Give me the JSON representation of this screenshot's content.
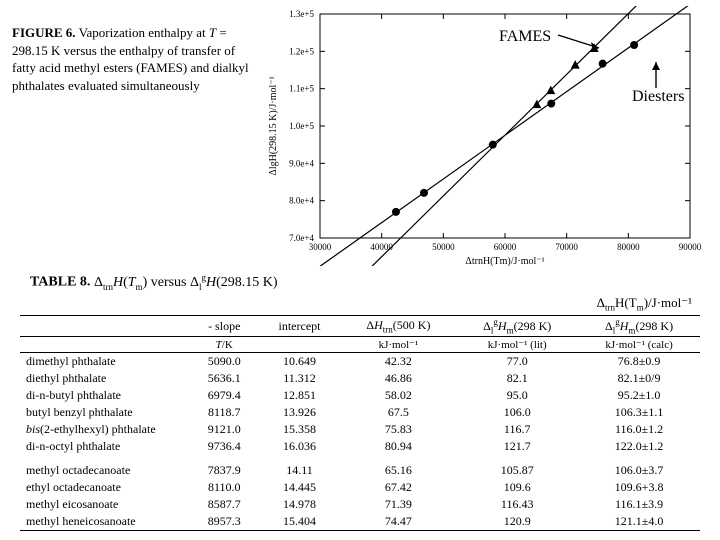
{
  "figure": {
    "title_bold": "FIGURE 6.",
    "caption_rest": " Vaporization enthalpy at T = 298.15 K versus the enthalpy of transfer of fatty acid methyl esters (FAMES) and dialkyl phthalates evaluated simultaneously",
    "labels": {
      "fames": "FAMES",
      "diesters": "Diesters"
    },
    "chart": {
      "type": "scatter-with-lines",
      "xlim": [
        30000,
        90000
      ],
      "ylim": [
        70000,
        130000
      ],
      "xticks": [
        30000,
        40000,
        50000,
        60000,
        70000,
        80000,
        90000
      ],
      "yticks": [
        70000,
        80000,
        90000,
        100000,
        110000,
        120000,
        130000
      ],
      "ytick_labels": [
        "7.0e+4",
        "8.0e+4",
        "9.0e+4",
        "1.0e+5",
        "1.1e+5",
        "1.2e+5",
        "1.3e+5"
      ],
      "x_axis_label": "ΔtrnH(Tm)/J·mol⁻¹",
      "y_axis_label": "ΔlgH(298.15 K)/J·mol⁻¹",
      "series": [
        {
          "name": "Diesters",
          "marker": "circle",
          "color": "#000000",
          "points": [
            [
              42320,
              77000
            ],
            [
              46860,
              82100
            ],
            [
              58020,
              95000
            ],
            [
              67500,
              106000
            ],
            [
              75830,
              116700
            ],
            [
              80940,
              121700
            ]
          ]
        },
        {
          "name": "FAMES",
          "marker": "triangle",
          "color": "#000000",
          "points": [
            [
              65160,
              105870
            ],
            [
              67420,
              109600
            ],
            [
              71390,
              116430
            ],
            [
              74470,
              120900
            ]
          ]
        }
      ],
      "background_color": "#ffffff",
      "axis_color": "#000000",
      "tick_fontsize": 9,
      "label_fontsize": 10
    }
  },
  "table": {
    "caption_bold": "TABLE 8.",
    "caption_rest_html": " Δ<sub>trn</sub><i>H</i>(<i>T</i><sub>m</sub>) versus Δ<sub>l</sub><sup>g</sup><i>H</i>(298.15 K)",
    "right_note_html": "Δ<sub>trn</sub>H(T<sub>m</sub>)/J·mol⁻¹",
    "columns": [
      {
        "h1": "",
        "h2": ""
      },
      {
        "h1": "- slope",
        "h2_html": "<i>T</i>/K"
      },
      {
        "h1": "intercept",
        "h2": ""
      },
      {
        "h1_html": "Δ<i>H</i><sub>trn</sub>(500 K)",
        "h2": "kJ·mol⁻¹"
      },
      {
        "h1_html": "Δ<sub>l</sub><sup>g</sup><i>H</i><sub>m</sub>(298 K)",
        "h2": "kJ·mol⁻¹ (lit)"
      },
      {
        "h1_html": "Δ<sub>l</sub><sup>g</sup><i>H</i><sub>m</sub>(298 K)",
        "h2": "kJ·mol⁻¹ (calc)"
      }
    ],
    "groups": [
      {
        "rows": [
          [
            "dimethyl phthalate",
            "5090.0",
            "10.649",
            "42.32",
            "77.0",
            "76.8±0.9"
          ],
          [
            "diethyl phthalate",
            "5636.1",
            "11.312",
            "46.86",
            "82.1",
            "82.1±0/9"
          ],
          [
            "di-n-butyl phthalate",
            "6979.4",
            "12.851",
            "58.02",
            "95.0",
            "95.2±1.0"
          ],
          [
            "butyl benzyl phthalate",
            "8118.7",
            "13.926",
            "67.5",
            "106.0",
            "106.3±1.1"
          ],
          [
            "bis(2-ethylhexyl) phthalate",
            "9121.0",
            "15.358",
            "75.83",
            "116.7",
            "116.0±1.2"
          ],
          [
            "di-n-octyl phthalate",
            "9736.4",
            "16.036",
            "80.94",
            "121.7",
            "122.0±1.2"
          ]
        ]
      },
      {
        "rows": [
          [
            "methyl octadecanoate",
            "7837.9",
            "14.11",
            "65.16",
            "105.87",
            "106.0±3.7"
          ],
          [
            "ethyl octadecanoate",
            "8110.0",
            "14.445",
            "67.42",
            "109.6",
            "109.6+3.8"
          ],
          [
            "methyl eicosanoate",
            "8587.7",
            "14.978",
            "71.39",
            "116.43",
            "116.1±3.9"
          ],
          [
            "methyl heneicosanoate",
            "8957.3",
            "15.404",
            "74.47",
            "120.9",
            "121.1±4.0"
          ]
        ]
      }
    ]
  }
}
